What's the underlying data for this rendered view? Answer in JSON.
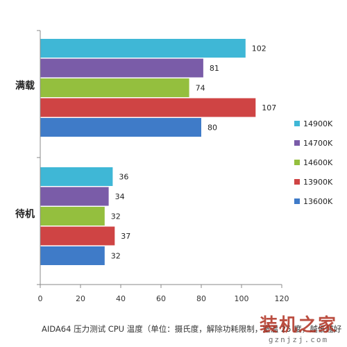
{
  "chart_data": {
    "type": "bar",
    "orientation": "horizontal",
    "title": "AIDA64 压力测试 CPU 温度（单位：摄氏度，解除功耗限制，室温 25 度，越低越好",
    "xlim": [
      0,
      120
    ],
    "xticks": [
      0,
      20,
      40,
      60,
      80,
      100,
      120
    ],
    "grid": false,
    "legend_position": "right",
    "categories": [
      "满载",
      "待机"
    ],
    "series": [
      {
        "name": "14900K",
        "color": "#3fb7d6",
        "values": [
          102,
          36
        ]
      },
      {
        "name": "14700K",
        "color": "#7a5ca8",
        "values": [
          81,
          34
        ]
      },
      {
        "name": "14600K",
        "color": "#94bf3e",
        "values": [
          74,
          32
        ]
      },
      {
        "name": "13900K",
        "color": "#cf4444",
        "values": [
          107,
          37
        ]
      },
      {
        "name": "13600K",
        "color": "#3f7bc8",
        "values": [
          80,
          32
        ]
      }
    ]
  },
  "watermark": {
    "text": "装机之家",
    "url": "gznjzj.com"
  }
}
